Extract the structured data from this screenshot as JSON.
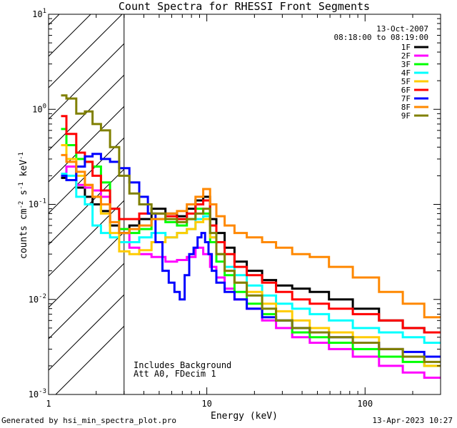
{
  "chart_data": {
    "type": "line",
    "title": "Count Spectra for RHESSI Front Segments",
    "xlabel": "Energy (keV)",
    "ylabel": "counts cm^-2 s^-1 keV^-1",
    "x_scale": "log",
    "y_scale": "log",
    "xlim": [
      1,
      300
    ],
    "ylim": [
      0.001,
      10
    ],
    "x_tick_labels": [
      {
        "value": 1,
        "label": "1"
      },
      {
        "value": 10,
        "label": "10"
      },
      {
        "value": 100,
        "label": "100"
      }
    ],
    "y_tick_labels": [
      {
        "value": 10,
        "base": "10",
        "exp": "1"
      },
      {
        "value": 1,
        "base": "10",
        "exp": "0"
      },
      {
        "value": 0.1,
        "base": "10",
        "exp": "-1"
      },
      {
        "value": 0.01,
        "base": "10",
        "exp": "-2"
      },
      {
        "value": 0.001,
        "base": "10",
        "exp": "-3"
      }
    ],
    "shaded_region": {
      "x_from": 1,
      "x_to": 3,
      "style": "diagonal hatch"
    },
    "info_lines": [
      "13-Oct-2007",
      "08:18:00 to 08:19:00"
    ],
    "annotations": [
      "Includes Background",
      "Att A0, FDecim 1"
    ],
    "series": [
      {
        "name": "1F",
        "color": "#000000",
        "points": [
          [
            1.2,
            0.19
          ],
          [
            1.4,
            0.25
          ],
          [
            1.6,
            0.15
          ],
          [
            1.8,
            0.12
          ],
          [
            2.0,
            0.1
          ],
          [
            2.3,
            0.085
          ],
          [
            2.6,
            0.06
          ],
          [
            3.0,
            0.05
          ],
          [
            3.5,
            0.06
          ],
          [
            4,
            0.07
          ],
          [
            5,
            0.09
          ],
          [
            6,
            0.08
          ],
          [
            7,
            0.075
          ],
          [
            8,
            0.09
          ],
          [
            9,
            0.11
          ],
          [
            10,
            0.12
          ],
          [
            11,
            0.07
          ],
          [
            12,
            0.05
          ],
          [
            14,
            0.035
          ],
          [
            16,
            0.025
          ],
          [
            20,
            0.02
          ],
          [
            25,
            0.016
          ],
          [
            30,
            0.014
          ],
          [
            40,
            0.013
          ],
          [
            50,
            0.012
          ],
          [
            70,
            0.01
          ],
          [
            100,
            0.008
          ],
          [
            150,
            0.006
          ],
          [
            200,
            0.005
          ],
          [
            280,
            0.0045
          ]
        ]
      },
      {
        "name": "2F",
        "color": "#ff00ff",
        "points": [
          [
            1.2,
            0.21
          ],
          [
            1.4,
            0.25
          ],
          [
            1.6,
            0.16
          ],
          [
            1.8,
            0.15
          ],
          [
            2.0,
            0.14
          ],
          [
            2.3,
            0.12
          ],
          [
            2.6,
            0.09
          ],
          [
            3.0,
            0.055
          ],
          [
            3.5,
            0.035
          ],
          [
            4,
            0.03
          ],
          [
            5,
            0.028
          ],
          [
            6,
            0.025
          ],
          [
            7,
            0.026
          ],
          [
            8,
            0.028
          ],
          [
            9,
            0.035
          ],
          [
            10,
            0.03
          ],
          [
            11,
            0.022
          ],
          [
            12,
            0.017
          ],
          [
            14,
            0.013
          ],
          [
            16,
            0.01
          ],
          [
            20,
            0.008
          ],
          [
            25,
            0.006
          ],
          [
            30,
            0.005
          ],
          [
            40,
            0.004
          ],
          [
            50,
            0.0035
          ],
          [
            70,
            0.003
          ],
          [
            100,
            0.0025
          ],
          [
            150,
            0.002
          ],
          [
            200,
            0.0017
          ],
          [
            280,
            0.0015
          ]
        ]
      },
      {
        "name": "3F",
        "color": "#00ff00",
        "points": [
          [
            1.2,
            0.62
          ],
          [
            1.4,
            0.42
          ],
          [
            1.6,
            0.3
          ],
          [
            1.8,
            0.28
          ],
          [
            2.0,
            0.25
          ],
          [
            2.3,
            0.17
          ],
          [
            2.6,
            0.09
          ],
          [
            3.0,
            0.055
          ],
          [
            3.5,
            0.05
          ],
          [
            4,
            0.055
          ],
          [
            5,
            0.07
          ],
          [
            6,
            0.065
          ],
          [
            7,
            0.06
          ],
          [
            8,
            0.07
          ],
          [
            9,
            0.09
          ],
          [
            10,
            0.08
          ],
          [
            11,
            0.04
          ],
          [
            12,
            0.025
          ],
          [
            14,
            0.018
          ],
          [
            16,
            0.012
          ],
          [
            20,
            0.009
          ],
          [
            25,
            0.007
          ],
          [
            30,
            0.006
          ],
          [
            40,
            0.0045
          ],
          [
            50,
            0.004
          ],
          [
            70,
            0.0035
          ],
          [
            100,
            0.003
          ],
          [
            150,
            0.0025
          ],
          [
            200,
            0.0022
          ],
          [
            280,
            0.002
          ]
        ]
      },
      {
        "name": "4F",
        "color": "#00ffff",
        "points": [
          [
            1.2,
            0.21
          ],
          [
            1.4,
            0.2
          ],
          [
            1.6,
            0.12
          ],
          [
            1.8,
            0.1
          ],
          [
            2.0,
            0.06
          ],
          [
            2.3,
            0.05
          ],
          [
            2.6,
            0.045
          ],
          [
            3.0,
            0.04
          ],
          [
            3.5,
            0.04
          ],
          [
            4,
            0.045
          ],
          [
            5,
            0.05
          ],
          [
            6,
            0.045
          ],
          [
            7,
            0.05
          ],
          [
            8,
            0.055
          ],
          [
            9,
            0.07
          ],
          [
            10,
            0.075
          ],
          [
            11,
            0.045
          ],
          [
            12,
            0.03
          ],
          [
            14,
            0.022
          ],
          [
            16,
            0.018
          ],
          [
            20,
            0.014
          ],
          [
            25,
            0.011
          ],
          [
            30,
            0.009
          ],
          [
            40,
            0.008
          ],
          [
            50,
            0.007
          ],
          [
            70,
            0.006
          ],
          [
            100,
            0.005
          ],
          [
            150,
            0.0045
          ],
          [
            200,
            0.004
          ],
          [
            280,
            0.0035
          ]
        ]
      },
      {
        "name": "5F",
        "color": "#ffcc00",
        "points": [
          [
            1.2,
            0.42
          ],
          [
            1.4,
            0.3
          ],
          [
            1.6,
            0.2
          ],
          [
            1.8,
            0.16
          ],
          [
            2.0,
            0.12
          ],
          [
            2.3,
            0.08
          ],
          [
            2.6,
            0.05
          ],
          [
            3.0,
            0.032
          ],
          [
            3.5,
            0.03
          ],
          [
            4,
            0.033
          ],
          [
            5,
            0.04
          ],
          [
            6,
            0.045
          ],
          [
            7,
            0.05
          ],
          [
            8,
            0.055
          ],
          [
            9,
            0.065
          ],
          [
            10,
            0.07
          ],
          [
            11,
            0.045
          ],
          [
            12,
            0.03
          ],
          [
            14,
            0.02
          ],
          [
            16,
            0.015
          ],
          [
            20,
            0.012
          ],
          [
            25,
            0.009
          ],
          [
            30,
            0.0075
          ],
          [
            40,
            0.006
          ],
          [
            50,
            0.005
          ],
          [
            70,
            0.0045
          ],
          [
            100,
            0.004
          ],
          [
            150,
            0.003
          ],
          [
            200,
            0.0025
          ],
          [
            280,
            0.002
          ]
        ]
      },
      {
        "name": "6F",
        "color": "#ff0000",
        "points": [
          [
            1.2,
            0.85
          ],
          [
            1.4,
            0.55
          ],
          [
            1.6,
            0.35
          ],
          [
            1.8,
            0.28
          ],
          [
            2.0,
            0.2
          ],
          [
            2.3,
            0.14
          ],
          [
            2.6,
            0.09
          ],
          [
            3.0,
            0.07
          ],
          [
            3.5,
            0.07
          ],
          [
            4,
            0.08
          ],
          [
            5,
            0.08
          ],
          [
            6,
            0.075
          ],
          [
            7,
            0.07
          ],
          [
            8,
            0.08
          ],
          [
            9,
            0.1
          ],
          [
            10,
            0.11
          ],
          [
            11,
            0.06
          ],
          [
            12,
            0.04
          ],
          [
            14,
            0.03
          ],
          [
            16,
            0.022
          ],
          [
            20,
            0.018
          ],
          [
            25,
            0.015
          ],
          [
            30,
            0.012
          ],
          [
            40,
            0.01
          ],
          [
            50,
            0.009
          ],
          [
            70,
            0.008
          ],
          [
            100,
            0.007
          ],
          [
            150,
            0.006
          ],
          [
            200,
            0.005
          ],
          [
            280,
            0.0045
          ]
        ]
      },
      {
        "name": "7F",
        "color": "#0000ff",
        "points": [
          [
            1.2,
            0.2
          ],
          [
            1.4,
            0.18
          ],
          [
            1.6,
            0.25
          ],
          [
            1.8,
            0.32
          ],
          [
            2.0,
            0.34
          ],
          [
            2.3,
            0.3
          ],
          [
            2.6,
            0.28
          ],
          [
            3.0,
            0.24
          ],
          [
            3.5,
            0.17
          ],
          [
            4,
            0.12
          ],
          [
            4.5,
            0.08
          ],
          [
            5,
            0.04
          ],
          [
            5.5,
            0.02
          ],
          [
            6,
            0.015
          ],
          [
            6.5,
            0.012
          ],
          [
            7,
            0.01
          ],
          [
            7.5,
            0.018
          ],
          [
            8,
            0.03
          ],
          [
            8.5,
            0.035
          ],
          [
            9,
            0.045
          ],
          [
            9.5,
            0.05
          ],
          [
            10,
            0.04
          ],
          [
            10.5,
            0.03
          ],
          [
            11,
            0.02
          ],
          [
            12,
            0.015
          ],
          [
            14,
            0.012
          ],
          [
            16,
            0.01
          ],
          [
            20,
            0.008
          ],
          [
            25,
            0.0065
          ],
          [
            30,
            0.006
          ],
          [
            40,
            0.005
          ],
          [
            50,
            0.0045
          ],
          [
            70,
            0.004
          ],
          [
            100,
            0.0035
          ],
          [
            150,
            0.003
          ],
          [
            200,
            0.0028
          ],
          [
            280,
            0.0025
          ]
        ]
      },
      {
        "name": "8F",
        "color": "#ff8800",
        "points": [
          [
            1.2,
            0.33
          ],
          [
            1.4,
            0.28
          ],
          [
            1.6,
            0.22
          ],
          [
            1.8,
            0.16
          ],
          [
            2.0,
            0.12
          ],
          [
            2.3,
            0.1
          ],
          [
            2.6,
            0.065
          ],
          [
            3.0,
            0.05
          ],
          [
            3.5,
            0.055
          ],
          [
            4,
            0.06
          ],
          [
            5,
            0.07
          ],
          [
            6,
            0.08
          ],
          [
            7,
            0.085
          ],
          [
            8,
            0.1
          ],
          [
            9,
            0.12
          ],
          [
            10,
            0.145
          ],
          [
            11,
            0.1
          ],
          [
            12,
            0.075
          ],
          [
            14,
            0.06
          ],
          [
            16,
            0.05
          ],
          [
            20,
            0.045
          ],
          [
            25,
            0.04
          ],
          [
            30,
            0.035
          ],
          [
            40,
            0.03
          ],
          [
            50,
            0.028
          ],
          [
            70,
            0.022
          ],
          [
            100,
            0.017
          ],
          [
            150,
            0.012
          ],
          [
            200,
            0.009
          ],
          [
            280,
            0.0065
          ]
        ]
      },
      {
        "name": "9F",
        "color": "#808000",
        "points": [
          [
            1.2,
            1.4
          ],
          [
            1.4,
            1.3
          ],
          [
            1.6,
            0.9
          ],
          [
            1.8,
            0.95
          ],
          [
            2.0,
            0.7
          ],
          [
            2.3,
            0.6
          ],
          [
            2.6,
            0.4
          ],
          [
            3.0,
            0.2
          ],
          [
            3.5,
            0.13
          ],
          [
            4,
            0.1
          ],
          [
            5,
            0.08
          ],
          [
            6,
            0.07
          ],
          [
            7,
            0.065
          ],
          [
            8,
            0.07
          ],
          [
            9,
            0.08
          ],
          [
            10,
            0.09
          ],
          [
            11,
            0.05
          ],
          [
            12,
            0.03
          ],
          [
            14,
            0.02
          ],
          [
            16,
            0.015
          ],
          [
            20,
            0.011
          ],
          [
            25,
            0.008
          ],
          [
            30,
            0.006
          ],
          [
            40,
            0.005
          ],
          [
            50,
            0.0045
          ],
          [
            70,
            0.004
          ],
          [
            100,
            0.0035
          ],
          [
            150,
            0.003
          ],
          [
            200,
            0.0025
          ],
          [
            280,
            0.0022
          ]
        ]
      }
    ]
  },
  "footer": {
    "left": "Generated by hsi_min_spectra_plot.pro",
    "right": "13-Apr-2023 10:27"
  }
}
